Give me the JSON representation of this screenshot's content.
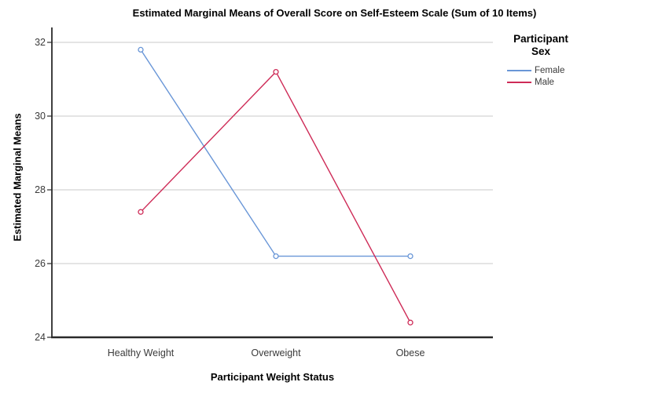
{
  "chart_data": {
    "type": "line",
    "title": "Estimated Marginal Means of Overall Score on Self-Esteem Scale (Sum of 10 Items)",
    "xlabel": "Participant Weight Status",
    "ylabel": "Estimated Marginal Means",
    "categories": [
      "Healthy Weight",
      "Overweight",
      "Obese"
    ],
    "series": [
      {
        "name": "Female",
        "color": "#6996D7",
        "values": [
          31.8,
          26.2,
          26.2
        ]
      },
      {
        "name": "Male",
        "color": "#CE2B57",
        "values": [
          27.4,
          31.2,
          24.4
        ]
      }
    ],
    "ylim": [
      24,
      32
    ],
    "yticks": [
      24,
      26,
      28,
      30,
      32
    ],
    "grid": true,
    "legend": {
      "title": "Participant Sex",
      "position": "right"
    },
    "colors": {
      "axis": "#2a2a2a",
      "gridline": "#c9c9c9",
      "tick_text": "#3b3b3b",
      "marker_fill": "#ffffff"
    }
  }
}
